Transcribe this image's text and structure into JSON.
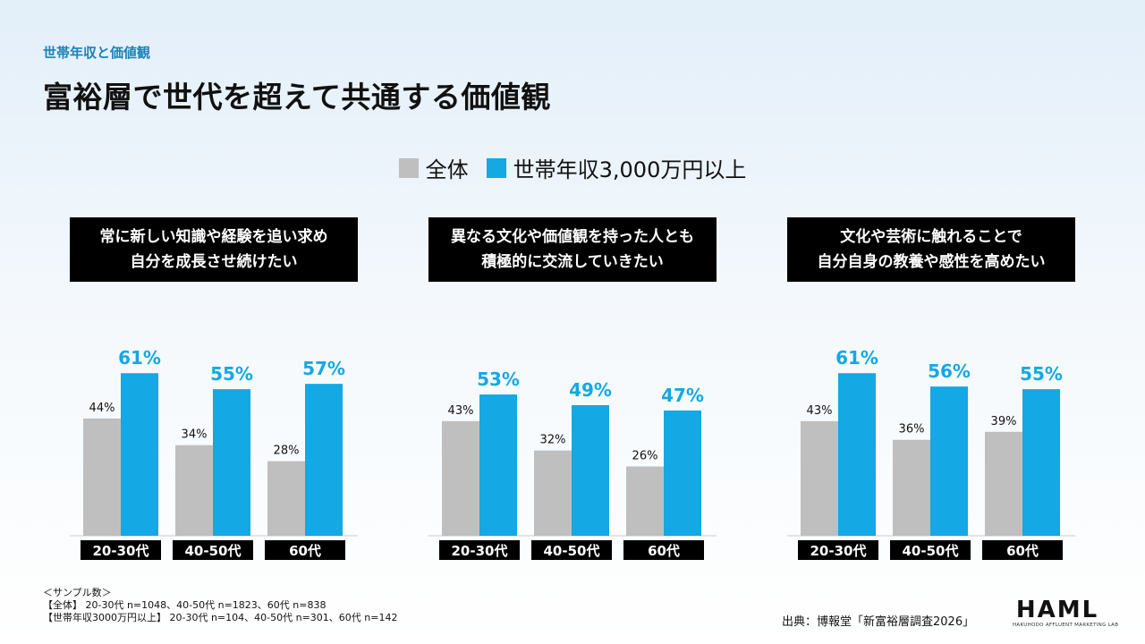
{
  "header": {
    "kicker": "世帯年収と価値観",
    "title": "富裕層で世代を超えて共通する価値観"
  },
  "colors": {
    "all": "#bfbfbf",
    "high": "#14a8e4",
    "label_high": "#14a8e4",
    "label_all": "#111111"
  },
  "chart_data": [
    {
      "type": "bar",
      "title": "常に新しい知識や経験を追い求め\n自分を成長させ続けたい",
      "categories": [
        "20-30代",
        "40-50代",
        "60代"
      ],
      "series": [
        {
          "name": "全体",
          "values": [
            44,
            34,
            28
          ]
        },
        {
          "name": "世帯年収3,000万円以上",
          "values": [
            61,
            55,
            57
          ]
        }
      ],
      "value_suffix": "%",
      "ylim": [
        0,
        70
      ]
    },
    {
      "type": "bar",
      "title": "異なる文化や価値観を持った人とも\n積極的に交流していきたい",
      "categories": [
        "20-30代",
        "40-50代",
        "60代"
      ],
      "series": [
        {
          "name": "全体",
          "values": [
            43,
            32,
            26
          ]
        },
        {
          "name": "世帯年収3,000万円以上",
          "values": [
            53,
            49,
            47
          ]
        }
      ],
      "value_suffix": "%",
      "ylim": [
        0,
        70
      ]
    },
    {
      "type": "bar",
      "title": "文化や芸術に触れることで\n自分自身の教養や感性を高めたい",
      "categories": [
        "20-30代",
        "40-50代",
        "60代"
      ],
      "series": [
        {
          "name": "全体",
          "values": [
            43,
            36,
            39
          ]
        },
        {
          "name": "世帯年収3,000万円以上",
          "values": [
            61,
            56,
            55
          ]
        }
      ],
      "value_suffix": "%",
      "ylim": [
        0,
        70
      ]
    }
  ],
  "notes": {
    "line1": "＜サンプル数＞",
    "line2": "【全体】 20-30代 n=1048、40-50代 n=1823、60代 n=838",
    "line3": "【世帯年収3000万円以上】 20-30代 n=104、40-50代 n=301、60代 n=142"
  },
  "source": "出典：博報堂「新富裕層調査2026」",
  "logo": {
    "main": "HAML",
    "sub": "HAKUHODO AFFLUENT MARKETING LAB"
  }
}
